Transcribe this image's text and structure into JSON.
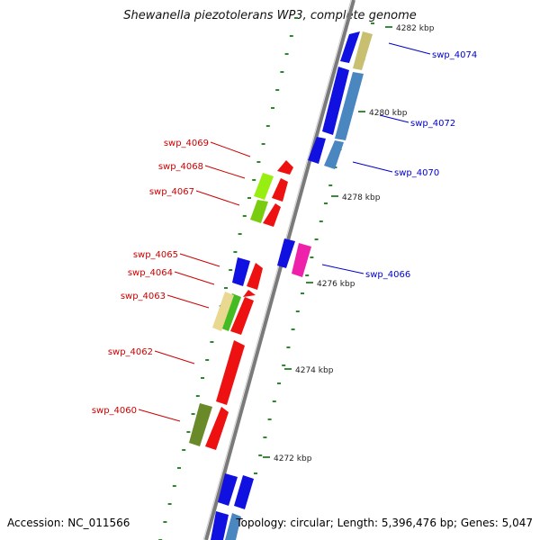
{
  "title": "Shewanella piezotolerans WP3, complete genome",
  "accession_text": "Accession: NC_011566",
  "summary_text": "Topology: circular; Length: 5,396,476 bp; Genes: 5,047",
  "scale_labels": [
    "4282 kbp",
    "4280 kbp",
    "4278 kbp",
    "4276 kbp",
    "4274 kbp",
    "4272 kbp"
  ],
  "genes_forward": [
    "swp_4074",
    "swp_4072",
    "swp_4070",
    "swp_4066"
  ],
  "genes_reverse": [
    "swp_4069",
    "swp_4068",
    "swp_4067",
    "swp_4065",
    "swp_4064",
    "swp_4063",
    "swp_4062",
    "swp_4060"
  ],
  "colors": {
    "forward_label": "#0000cc",
    "reverse_label": "#cc0000",
    "backbone": "#888888",
    "tick": "#2a8a2a",
    "blue_gene": "#1010e0",
    "red_gene": "#ee1111",
    "steel_gene": "#4a86c0",
    "khaki_gene": "#c8c070",
    "magenta_gene": "#ee22aa",
    "lime_gene": "#99ee11",
    "olive_gene": "#6a8a2a"
  }
}
